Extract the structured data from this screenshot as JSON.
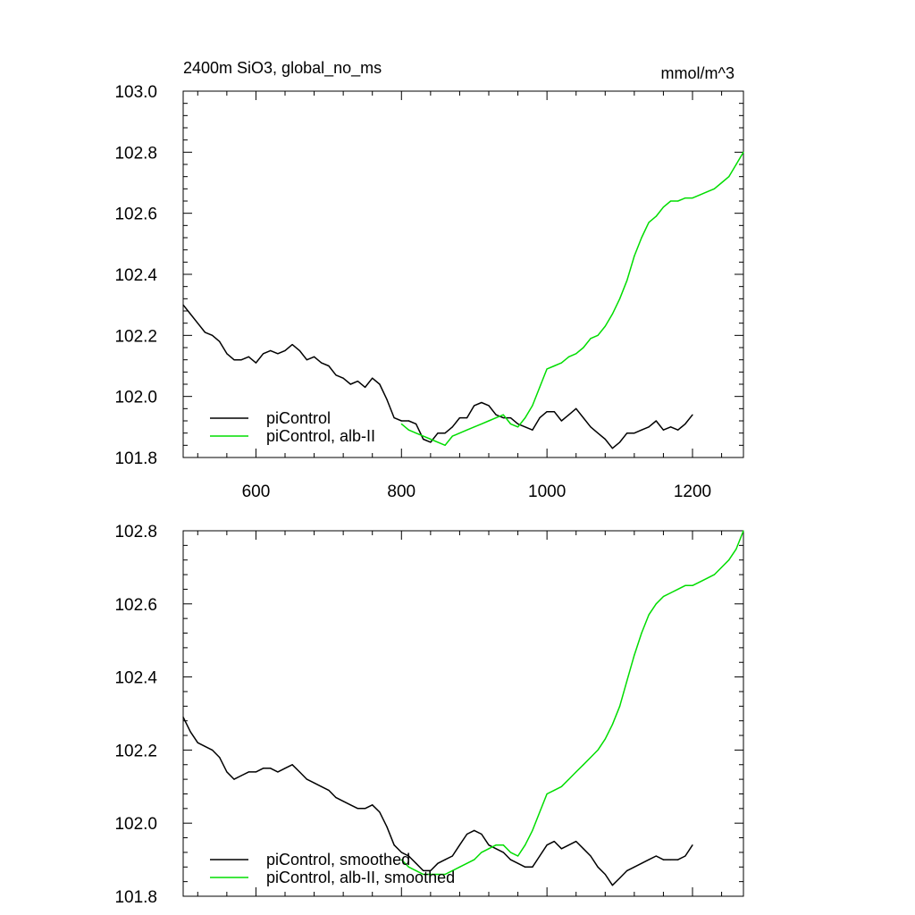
{
  "colors": {
    "control": "#000000",
    "albII": "#00dd00"
  },
  "chart_data": [
    {
      "type": "line",
      "title": "2400m SiO3, global_no_ms",
      "units": "mmol/m^3",
      "xlim": [
        500,
        1270
      ],
      "ylim": [
        101.8,
        103.0
      ],
      "x_ticks": [
        600,
        800,
        1000,
        1200
      ],
      "y_ticks": [
        "101.8",
        "102.0",
        "102.2",
        "102.4",
        "102.6",
        "102.8",
        "103.0"
      ],
      "legend": {
        "position": "bottom-left"
      },
      "series": [
        {
          "name": "piControl",
          "color": "#000000",
          "x": [
            500,
            510,
            520,
            530,
            540,
            550,
            560,
            570,
            580,
            590,
            600,
            610,
            620,
            630,
            640,
            650,
            660,
            670,
            680,
            690,
            700,
            710,
            720,
            730,
            740,
            750,
            760,
            770,
            780,
            790,
            800,
            810,
            820,
            830,
            840,
            850,
            860,
            870,
            880,
            890,
            900,
            910,
            920,
            930,
            940,
            950,
            960,
            970,
            980,
            990,
            1000,
            1010,
            1020,
            1030,
            1040,
            1050,
            1060,
            1070,
            1080,
            1090,
            1100,
            1110,
            1120,
            1130,
            1140,
            1150,
            1160,
            1170,
            1180,
            1190,
            1200
          ],
          "values": [
            102.3,
            102.27,
            102.24,
            102.21,
            102.2,
            102.18,
            102.14,
            102.12,
            102.12,
            102.13,
            102.11,
            102.14,
            102.15,
            102.14,
            102.15,
            102.17,
            102.15,
            102.12,
            102.13,
            102.11,
            102.1,
            102.07,
            102.06,
            102.04,
            102.05,
            102.03,
            102.06,
            102.04,
            101.99,
            101.93,
            101.92,
            101.92,
            101.91,
            101.86,
            101.85,
            101.88,
            101.88,
            101.9,
            101.93,
            101.93,
            101.97,
            101.98,
            101.97,
            101.94,
            101.93,
            101.93,
            101.91,
            101.9,
            101.89,
            101.93,
            101.95,
            101.95,
            101.92,
            101.94,
            101.96,
            101.93,
            101.9,
            101.88,
            101.86,
            101.83,
            101.85,
            101.88,
            101.88,
            101.89,
            101.9,
            101.92,
            101.89,
            101.9,
            101.89,
            101.91,
            101.94
          ]
        },
        {
          "name": "piControl, alb-II",
          "color": "#00dd00",
          "x": [
            800,
            810,
            820,
            830,
            840,
            850,
            860,
            870,
            880,
            890,
            900,
            910,
            920,
            930,
            940,
            950,
            960,
            970,
            980,
            990,
            1000,
            1010,
            1020,
            1030,
            1040,
            1050,
            1060,
            1070,
            1080,
            1090,
            1100,
            1110,
            1120,
            1130,
            1140,
            1150,
            1160,
            1170,
            1180,
            1190,
            1200,
            1210,
            1220,
            1230,
            1240,
            1250,
            1260,
            1270
          ],
          "values": [
            101.91,
            101.89,
            101.88,
            101.87,
            101.86,
            101.85,
            101.84,
            101.87,
            101.88,
            101.89,
            101.9,
            101.91,
            101.92,
            101.93,
            101.94,
            101.91,
            101.9,
            101.93,
            101.97,
            102.03,
            102.09,
            102.1,
            102.11,
            102.13,
            102.14,
            102.16,
            102.19,
            102.2,
            102.23,
            102.27,
            102.32,
            102.38,
            102.46,
            102.52,
            102.57,
            102.59,
            102.62,
            102.64,
            102.64,
            102.65,
            102.65,
            102.66,
            102.67,
            102.68,
            102.7,
            102.72,
            102.76,
            102.8
          ]
        }
      ]
    },
    {
      "type": "line",
      "xlim": [
        500,
        1270
      ],
      "ylim": [
        101.8,
        102.8
      ],
      "y_ticks": [
        "101.8",
        "102.0",
        "102.2",
        "102.4",
        "102.6",
        "102.8"
      ],
      "legend": {
        "position": "bottom-left"
      },
      "series": [
        {
          "name": "piControl, smoothed",
          "color": "#000000",
          "x": [
            500,
            510,
            520,
            530,
            540,
            550,
            560,
            570,
            580,
            590,
            600,
            610,
            620,
            630,
            640,
            650,
            660,
            670,
            680,
            690,
            700,
            710,
            720,
            730,
            740,
            750,
            760,
            770,
            780,
            790,
            800,
            810,
            820,
            830,
            840,
            850,
            860,
            870,
            880,
            890,
            900,
            910,
            920,
            930,
            940,
            950,
            960,
            970,
            980,
            990,
            1000,
            1010,
            1020,
            1030,
            1040,
            1050,
            1060,
            1070,
            1080,
            1090,
            1100,
            1110,
            1120,
            1130,
            1140,
            1150,
            1160,
            1170,
            1180,
            1190,
            1200
          ],
          "values": [
            102.29,
            102.25,
            102.22,
            102.21,
            102.2,
            102.18,
            102.14,
            102.12,
            102.13,
            102.14,
            102.14,
            102.15,
            102.15,
            102.14,
            102.15,
            102.16,
            102.14,
            102.12,
            102.11,
            102.1,
            102.09,
            102.07,
            102.06,
            102.05,
            102.04,
            102.04,
            102.05,
            102.03,
            101.99,
            101.94,
            101.92,
            101.91,
            101.89,
            101.87,
            101.87,
            101.89,
            101.9,
            101.91,
            101.94,
            101.97,
            101.98,
            101.97,
            101.94,
            101.93,
            101.92,
            101.9,
            101.89,
            101.88,
            101.88,
            101.91,
            101.94,
            101.95,
            101.93,
            101.94,
            101.95,
            101.93,
            101.91,
            101.88,
            101.86,
            101.83,
            101.85,
            101.87,
            101.88,
            101.89,
            101.9,
            101.91,
            101.9,
            101.9,
            101.9,
            101.91,
            101.94
          ]
        },
        {
          "name": "piControl, alb-II, smoothed",
          "color": "#00dd00",
          "x": [
            800,
            810,
            820,
            830,
            840,
            850,
            860,
            870,
            880,
            890,
            900,
            910,
            920,
            930,
            940,
            950,
            960,
            970,
            980,
            990,
            1000,
            1010,
            1020,
            1030,
            1040,
            1050,
            1060,
            1070,
            1080,
            1090,
            1100,
            1110,
            1120,
            1130,
            1140,
            1150,
            1160,
            1170,
            1180,
            1190,
            1200,
            1210,
            1220,
            1230,
            1240,
            1250,
            1260,
            1270
          ],
          "values": [
            101.9,
            101.88,
            101.87,
            101.86,
            101.86,
            101.86,
            101.86,
            101.87,
            101.88,
            101.89,
            101.9,
            101.92,
            101.93,
            101.94,
            101.94,
            101.92,
            101.91,
            101.94,
            101.98,
            102.03,
            102.08,
            102.09,
            102.1,
            102.12,
            102.14,
            102.16,
            102.18,
            102.2,
            102.23,
            102.27,
            102.32,
            102.39,
            102.46,
            102.52,
            102.57,
            102.6,
            102.62,
            102.63,
            102.64,
            102.65,
            102.65,
            102.66,
            102.67,
            102.68,
            102.7,
            102.72,
            102.75,
            102.8
          ]
        }
      ]
    }
  ]
}
